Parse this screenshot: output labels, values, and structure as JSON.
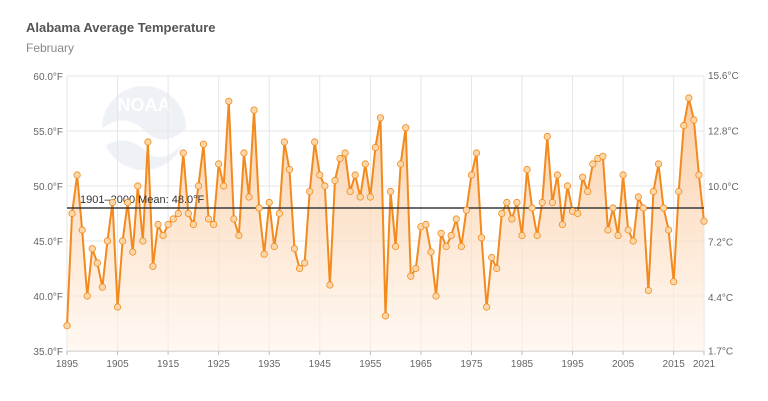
{
  "header": {
    "title": "Alabama Average Temperature",
    "subtitle": "February"
  },
  "colors": {
    "line": "#f28a1e",
    "point": "#fbd7a8",
    "mean": "#3a3a3a",
    "grid": "#e6e6e6",
    "fill_top": "#f9c79a",
    "fill_bottom": "#fff3e8"
  },
  "chart_data": {
    "type": "area",
    "title": "Alabama Average Temperature",
    "subtitle": "February",
    "xlim": [
      1895,
      2021
    ],
    "ylim": [
      35,
      60
    ],
    "x_ticks": [
      1895,
      1905,
      1915,
      1925,
      1935,
      1945,
      1955,
      1965,
      1975,
      1985,
      1995,
      2005,
      2015,
      2021
    ],
    "y_ticks": [
      35,
      40,
      45,
      50,
      55,
      60
    ],
    "y_tick_labels": [
      "35.0°F",
      "40.0°F",
      "45.0°F",
      "50.0°F",
      "55.0°F",
      "60.0°F"
    ],
    "y2_ticks": [
      {
        "value": 1.7,
        "label": "1.7°C"
      },
      {
        "value": 4.4,
        "label": "4.4°C"
      },
      {
        "value": 7.2,
        "label": "7.2°C"
      },
      {
        "value": 10.0,
        "label": "10.0°C"
      },
      {
        "value": 12.8,
        "label": "12.8°C"
      },
      {
        "value": 15.6,
        "label": "15.6°C"
      }
    ],
    "grid": true,
    "mean": {
      "value": 48.0,
      "label": "1901–2000 Mean: 48.0°F"
    },
    "x": [
      1895,
      1896,
      1897,
      1898,
      1899,
      1900,
      1901,
      1902,
      1903,
      1904,
      1905,
      1906,
      1907,
      1908,
      1909,
      1910,
      1911,
      1912,
      1913,
      1914,
      1915,
      1916,
      1917,
      1918,
      1919,
      1920,
      1921,
      1922,
      1923,
      1924,
      1925,
      1926,
      1927,
      1928,
      1929,
      1930,
      1931,
      1932,
      1933,
      1934,
      1935,
      1936,
      1937,
      1938,
      1939,
      1940,
      1941,
      1942,
      1943,
      1944,
      1945,
      1946,
      1947,
      1948,
      1949,
      1950,
      1951,
      1952,
      1953,
      1954,
      1955,
      1956,
      1957,
      1958,
      1959,
      1960,
      1961,
      1962,
      1963,
      1964,
      1965,
      1966,
      1967,
      1968,
      1969,
      1970,
      1971,
      1972,
      1973,
      1974,
      1975,
      1976,
      1977,
      1978,
      1979,
      1980,
      1981,
      1982,
      1983,
      1984,
      1985,
      1986,
      1987,
      1988,
      1989,
      1990,
      1991,
      1992,
      1993,
      1994,
      1995,
      1996,
      1997,
      1998,
      1999,
      2000,
      2001,
      2002,
      2003,
      2004,
      2005,
      2006,
      2007,
      2008,
      2009,
      2010,
      2011,
      2012,
      2013,
      2014,
      2015,
      2016,
      2017,
      2018,
      2019,
      2020,
      2021
    ],
    "series": [
      {
        "values": [
          37.3,
          47.5,
          51.0,
          46.0,
          40.0,
          44.3,
          43.0,
          40.8,
          45.0,
          48.5,
          39.0,
          45.0,
          48.5,
          44.0,
          50.0,
          45.0,
          54.0,
          42.7,
          46.5,
          45.5,
          46.5,
          47.0,
          47.5,
          53.0,
          47.5,
          46.5,
          50.0,
          53.8,
          47.0,
          46.5,
          52.0,
          50.0,
          57.7,
          47.0,
          45.5,
          53.0,
          49.0,
          56.9,
          48.0,
          43.8,
          48.5,
          44.5,
          47.5,
          54.0,
          51.5,
          44.3,
          42.5,
          43.0,
          49.5,
          54.0,
          51.0,
          50.0,
          41.0,
          50.5,
          52.5,
          53.0,
          49.5,
          51.0,
          49.0,
          52.0,
          49.0,
          53.5,
          56.2,
          38.2,
          49.5,
          44.5,
          52.0,
          55.3,
          41.8,
          42.5,
          46.3,
          46.5,
          44.0,
          40.0,
          45.7,
          44.5,
          45.5,
          47.0,
          44.5,
          47.8,
          51.0,
          53.0,
          45.3,
          39.0,
          43.5,
          42.5,
          47.5,
          48.5,
          47.0,
          48.5,
          45.5,
          51.5,
          48.0,
          45.5,
          48.5,
          54.5,
          48.5,
          51.0,
          46.5,
          50.0,
          47.7,
          47.5,
          50.8,
          49.5,
          52.0,
          52.5,
          52.7,
          46.0,
          48.0,
          45.5,
          51.0,
          46.0,
          45.0,
          49.0,
          48.0,
          40.5,
          49.5,
          52.0,
          48.0,
          46.0,
          41.3,
          49.5,
          55.5,
          58.0,
          56.0,
          51.0,
          46.8
        ]
      }
    ]
  }
}
